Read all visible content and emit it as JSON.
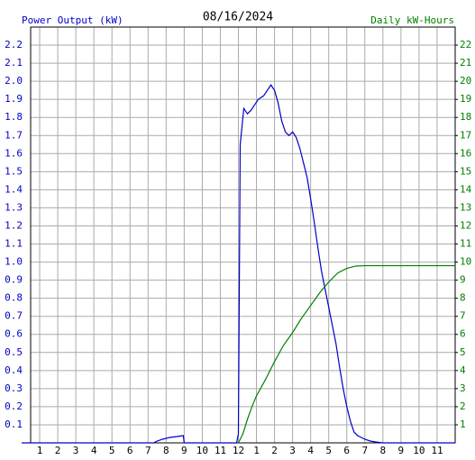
{
  "chart_data": {
    "type": "line",
    "title": "08/16/2024",
    "y_label": "Power Output (kW)",
    "y2_label": "Daily kW-Hours",
    "grid": true,
    "xlim": [
      0.5,
      24
    ],
    "xticks": [
      1,
      2,
      3,
      4,
      5,
      6,
      7,
      8,
      9,
      10,
      11,
      12,
      {
        "value": 13,
        "label": "1"
      },
      {
        "value": 14,
        "label": "2"
      },
      {
        "value": 15,
        "label": "3"
      },
      {
        "value": 16,
        "label": "4"
      },
      {
        "value": 17,
        "label": "5"
      },
      {
        "value": 18,
        "label": "6"
      },
      {
        "value": 19,
        "label": "7"
      },
      {
        "value": 20,
        "label": "8"
      },
      {
        "value": 21,
        "label": "9"
      },
      {
        "value": 22,
        "label": "10"
      },
      {
        "value": 23,
        "label": "11"
      }
    ],
    "ylim": [
      0,
      2.3
    ],
    "yticks": [
      0.1,
      0.2,
      0.3,
      0.4,
      0.5,
      0.6,
      0.7,
      0.8,
      0.9,
      {
        "value": 1,
        "label": "1.0"
      },
      1.1,
      1.2,
      1.3,
      1.4,
      1.5,
      1.6,
      1.7,
      1.8,
      1.9,
      {
        "value": 2,
        "label": "2.0"
      },
      2.1,
      2.2
    ],
    "y2lim": [
      0,
      23
    ],
    "y2ticks": [
      1,
      2,
      3,
      4,
      5,
      6,
      7,
      8,
      9,
      10,
      11,
      12,
      13,
      14,
      15,
      16,
      17,
      18,
      19,
      20,
      21,
      22
    ],
    "y_color": "#0000cc",
    "y2_color": "#008000",
    "series": [
      {
        "name": "Power Output (kW)",
        "color": "#0000cc",
        "x": [
          0,
          7.3,
          7.5,
          7.8,
          8.2,
          8.6,
          8.95,
          9.0,
          11.9,
          12.0,
          12.05,
          12.1,
          12.2,
          12.3,
          12.5,
          12.7,
          12.9,
          13.1,
          13.4,
          13.8,
          14.0,
          14.2,
          14.4,
          14.6,
          14.8,
          15.0,
          15.2,
          15.4,
          15.6,
          15.8,
          16.0,
          16.2,
          16.4,
          16.6,
          16.8,
          17.0,
          17.2,
          17.4,
          17.6,
          17.8,
          18.0,
          18.2,
          18.4,
          18.6,
          18.8,
          19.0,
          19.3,
          19.6,
          20,
          24
        ],
        "values": [
          0,
          0,
          0.01,
          0.02,
          0.03,
          0.035,
          0.04,
          0,
          0,
          0.05,
          0.85,
          1.65,
          1.75,
          1.85,
          1.82,
          1.84,
          1.87,
          1.9,
          1.92,
          1.98,
          1.95,
          1.88,
          1.78,
          1.72,
          1.7,
          1.72,
          1.69,
          1.63,
          1.55,
          1.47,
          1.35,
          1.22,
          1.08,
          0.95,
          0.85,
          0.75,
          0.65,
          0.55,
          0.42,
          0.3,
          0.2,
          0.12,
          0.06,
          0.04,
          0.03,
          0.02,
          0.01,
          0.005,
          0,
          0
        ]
      },
      {
        "name": "Daily kW-Hours",
        "color": "#008000",
        "axis": "y2",
        "x": [
          12,
          12.25,
          12.5,
          12.75,
          13,
          13.5,
          14,
          14.5,
          15,
          15.5,
          16,
          16.5,
          17,
          17.5,
          18,
          18.5,
          19,
          24
        ],
        "values": [
          0,
          0.5,
          1.3,
          2.0,
          2.6,
          3.5,
          4.5,
          5.4,
          6.1,
          6.9,
          7.6,
          8.3,
          8.9,
          9.4,
          9.65,
          9.78,
          9.8,
          9.8
        ]
      }
    ]
  }
}
